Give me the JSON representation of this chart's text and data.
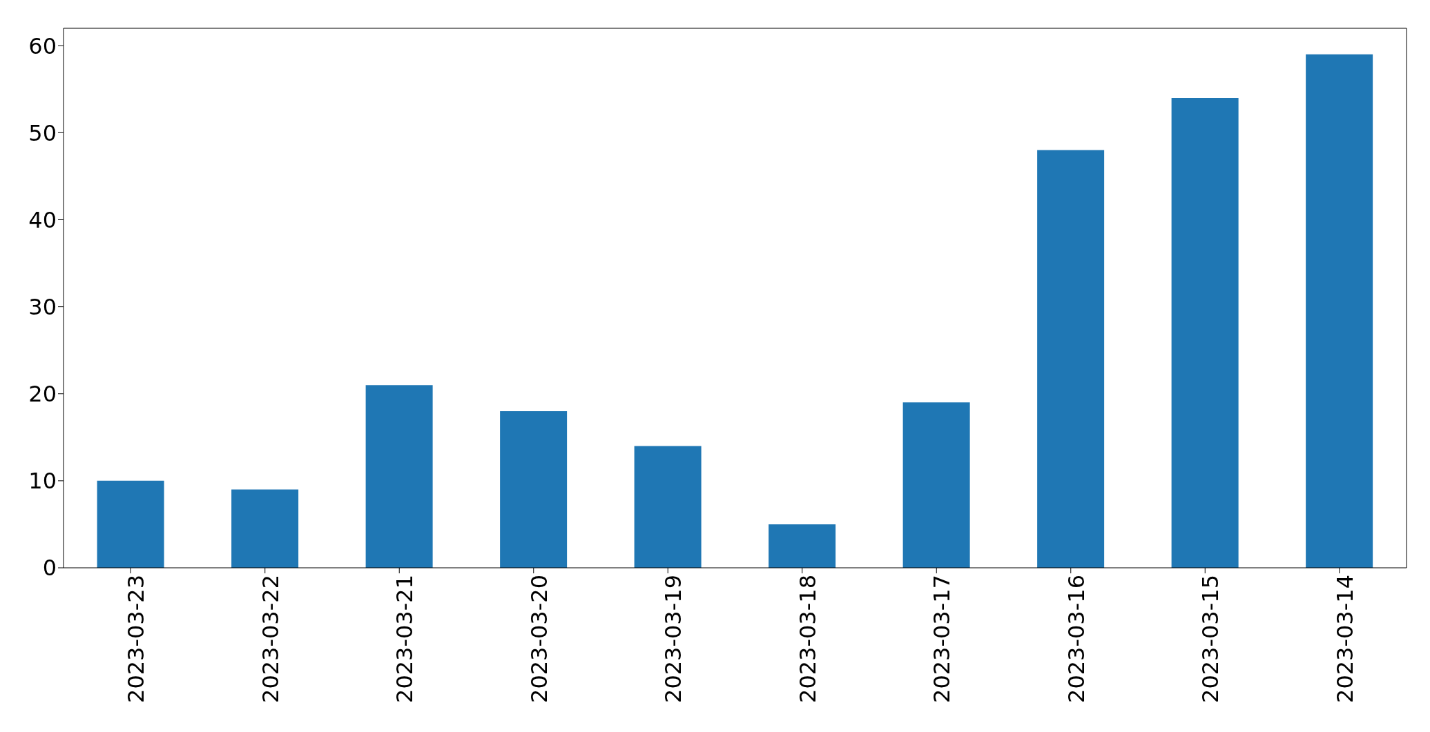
{
  "chart_data": {
    "type": "bar",
    "categories": [
      "2023-03-23",
      "2023-03-22",
      "2023-03-21",
      "2023-03-20",
      "2023-03-19",
      "2023-03-18",
      "2023-03-17",
      "2023-03-16",
      "2023-03-15",
      "2023-03-14"
    ],
    "values": [
      10,
      9,
      21,
      18,
      14,
      5,
      19,
      48,
      54,
      59
    ],
    "color": "#1f77b4",
    "ylim": [
      0,
      62
    ],
    "yticks": [
      0,
      10,
      20,
      30,
      40,
      50,
      60
    ],
    "grid": false,
    "legend": false
  }
}
